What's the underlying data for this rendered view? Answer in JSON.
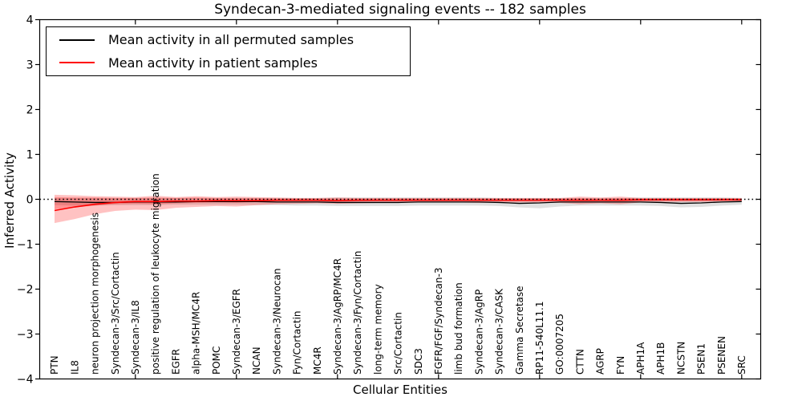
{
  "chart_data": {
    "type": "line",
    "title": "Syndecan-3-mediated signaling events -- 182 samples",
    "xlabel": "Cellular Entities",
    "ylabel": "Inferred Activity",
    "ylim": [
      -4,
      4
    ],
    "ytick_values": [
      4,
      3,
      2,
      1,
      0,
      -1,
      -2,
      -3,
      -4
    ],
    "ytick_labels": [
      "4",
      "3",
      "2",
      "1",
      "0",
      "−1",
      "−2",
      "−3",
      "−4"
    ],
    "grid": false,
    "legend_position": "upper left",
    "zero_reference_line": {
      "y": 0,
      "style": "dotted",
      "color": "#000000"
    },
    "top_tick_category_indices": [
      4,
      9,
      14,
      19,
      24,
      29,
      34
    ],
    "categories": [
      "PTN",
      "IL8",
      "neuron projection morphogenesis",
      "Syndecan-3/Src/Cortactin",
      "Syndecan-3/IL8",
      "positive regulation of leukocyte migration",
      "EGFR",
      "alpha-MSH/MC4R",
      "POMC",
      "Syndecan-3/EGFR",
      "NCAN",
      "Syndecan-3/Neurocan",
      "Fyn/Cortactin",
      "MC4R",
      "Syndecan-3/AgRP/MC4R",
      "Syndecan-3/Fyn/Cortactin",
      "long-term memory",
      "Src/Cortactin",
      "SDC3",
      "FGFR/FGF/Syndecan-3",
      "limb bud formation",
      "Syndecan-3/AgRP",
      "Syndecan-3/CASK",
      "Gamma Secretase",
      "RP11-540L11.1",
      "GO:0007205",
      "CTTN",
      "AGRP",
      "FYN",
      "APH1A",
      "APH1B",
      "NCSTN",
      "PSEN1",
      "PSENEN",
      "SRC"
    ],
    "series": [
      {
        "name": "Mean activity in all permuted samples",
        "color": "#000000",
        "style": "solid",
        "values": [
          -0.05,
          -0.06,
          -0.07,
          -0.07,
          -0.06,
          -0.06,
          -0.06,
          -0.05,
          -0.05,
          -0.05,
          -0.05,
          -0.06,
          -0.06,
          -0.06,
          -0.07,
          -0.07,
          -0.07,
          -0.07,
          -0.06,
          -0.06,
          -0.06,
          -0.06,
          -0.07,
          -0.09,
          -0.08,
          -0.06,
          -0.06,
          -0.06,
          -0.06,
          -0.06,
          -0.07,
          -0.09,
          -0.08,
          -0.06,
          -0.05
        ],
        "band": {
          "opacity": 0.12,
          "upper": [
            0.03,
            0.03,
            0.03,
            0.03,
            0.03,
            0.03,
            0.03,
            0.03,
            0.03,
            0.03,
            0.03,
            0.03,
            0.03,
            0.03,
            0.04,
            0.04,
            0.04,
            0.04,
            0.04,
            0.04,
            0.04,
            0.04,
            0.03,
            0.03,
            0.03,
            0.03,
            0.03,
            0.03,
            0.03,
            0.04,
            0.04,
            0.04,
            0.04,
            0.04,
            0.03
          ],
          "lower": [
            -0.13,
            -0.14,
            -0.14,
            -0.13,
            -0.13,
            -0.13,
            -0.12,
            -0.12,
            -0.12,
            -0.12,
            -0.13,
            -0.13,
            -0.14,
            -0.14,
            -0.15,
            -0.15,
            -0.15,
            -0.15,
            -0.14,
            -0.14,
            -0.14,
            -0.14,
            -0.15,
            -0.18,
            -0.2,
            -0.16,
            -0.14,
            -0.14,
            -0.14,
            -0.14,
            -0.15,
            -0.18,
            -0.17,
            -0.14,
            -0.12
          ]
        }
      },
      {
        "name": "Mean activity in patient samples",
        "color": "#ff0000",
        "style": "solid",
        "values": [
          -0.25,
          -0.17,
          -0.11,
          -0.07,
          -0.05,
          -0.05,
          -0.04,
          -0.04,
          -0.03,
          -0.03,
          -0.03,
          -0.02,
          -0.02,
          -0.02,
          -0.03,
          -0.02,
          -0.02,
          -0.02,
          -0.02,
          -0.02,
          -0.02,
          -0.02,
          -0.02,
          -0.02,
          -0.02,
          -0.02,
          -0.02,
          -0.02,
          -0.02,
          -0.01,
          -0.01,
          -0.01,
          -0.01,
          -0.01,
          -0.01
        ],
        "band": {
          "opacity": 0.24,
          "upper": [
            0.1,
            0.09,
            0.07,
            0.06,
            0.05,
            0.08,
            0.05,
            0.07,
            0.05,
            0.06,
            0.05,
            0.04,
            0.03,
            0.03,
            0.04,
            0.03,
            0.03,
            0.03,
            0.03,
            0.03,
            0.03,
            0.03,
            0.03,
            0.03,
            0.03,
            0.03,
            0.06,
            0.04,
            0.06,
            0.03,
            0.03,
            0.03,
            0.03,
            0.03,
            0.03
          ],
          "lower": [
            -0.53,
            -0.44,
            -0.33,
            -0.26,
            -0.23,
            -0.24,
            -0.19,
            -0.17,
            -0.15,
            -0.16,
            -0.13,
            -0.11,
            -0.1,
            -0.09,
            -0.1,
            -0.09,
            -0.08,
            -0.08,
            -0.07,
            -0.07,
            -0.07,
            -0.08,
            -0.07,
            -0.07,
            -0.07,
            -0.08,
            -0.11,
            -0.09,
            -0.11,
            -0.07,
            -0.06,
            -0.06,
            -0.06,
            -0.06,
            -0.06
          ]
        },
        "band_inner": {
          "opacity": 0.24,
          "upper": [
            0.05,
            0.04,
            0.04,
            0.03,
            0.03,
            0.04,
            0.03,
            0.04,
            0.03,
            0.03,
            0.03,
            0.02,
            0.02,
            0.02,
            0.02,
            0.02,
            0.02,
            0.02,
            0.02,
            0.02,
            0.02,
            0.02,
            0.02,
            0.02,
            0.02,
            0.02,
            0.03,
            0.02,
            0.03,
            0.02,
            0.02,
            0.02,
            0.02,
            0.02,
            0.02
          ],
          "lower": [
            -0.22,
            -0.18,
            -0.14,
            -0.11,
            -0.1,
            -0.11,
            -0.09,
            -0.08,
            -0.07,
            -0.08,
            -0.06,
            -0.05,
            -0.05,
            -0.05,
            -0.05,
            -0.05,
            -0.04,
            -0.04,
            -0.04,
            -0.04,
            -0.04,
            -0.04,
            -0.04,
            -0.04,
            -0.04,
            -0.04,
            -0.05,
            -0.04,
            -0.05,
            -0.04,
            -0.03,
            -0.03,
            -0.03,
            -0.03,
            -0.03
          ]
        }
      }
    ]
  }
}
